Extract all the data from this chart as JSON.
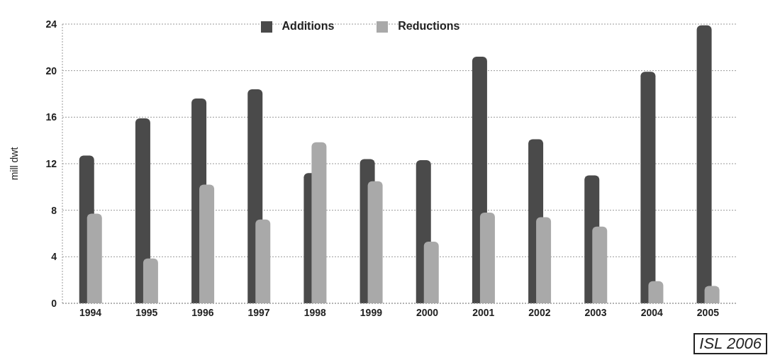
{
  "chart_data": {
    "type": "bar",
    "ylabel": "mill dwt",
    "categories": [
      "1994",
      "1995",
      "1996",
      "1997",
      "1998",
      "1999",
      "2000",
      "2001",
      "2002",
      "2003",
      "2004",
      "2005"
    ],
    "series": [
      {
        "name": "Additions",
        "color": "#4a4a4a",
        "values": [
          12.7,
          15.9,
          17.6,
          18.4,
          11.2,
          12.4,
          12.3,
          21.2,
          14.1,
          11.0,
          19.9,
          23.9
        ]
      },
      {
        "name": "Reductions",
        "color": "#a9a9a9",
        "values": [
          7.7,
          3.85,
          10.2,
          7.2,
          13.85,
          10.5,
          5.3,
          7.8,
          7.4,
          6.6,
          1.9,
          1.5
        ]
      }
    ],
    "ylim": [
      0,
      24
    ],
    "yticks": [
      0,
      4,
      8,
      12,
      16,
      20,
      24
    ],
    "grid": "y",
    "legend": "top",
    "annotations": [
      "ISL 2006"
    ]
  }
}
